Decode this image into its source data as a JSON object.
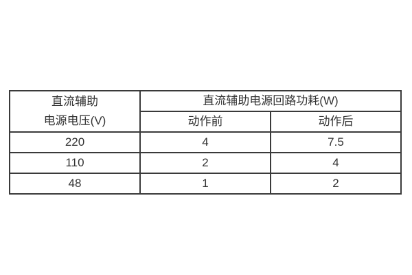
{
  "page": {
    "background_color": "#ffffff"
  },
  "colors": {
    "border": "#3a3a3a",
    "text": "#333333"
  },
  "table": {
    "header": {
      "voltage_line1": "直流辅助",
      "voltage_line2": "电源电压(V)",
      "power_group": "直流辅助电源回路功耗(W)",
      "before_action": "动作前",
      "after_action": "动作后"
    },
    "rows": [
      {
        "voltage": "220",
        "before": "4",
        "after": "7.5"
      },
      {
        "voltage": "110",
        "before": "2",
        "after": "4"
      },
      {
        "voltage": "48",
        "before": "1",
        "after": "2"
      }
    ]
  },
  "chart_data": {
    "type": "table",
    "title": "直流辅助电源回路功耗(W)",
    "categories": [
      "220",
      "110",
      "48"
    ],
    "series": [
      {
        "name": "动作前",
        "values": [
          4,
          2,
          1
        ]
      },
      {
        "name": "动作后",
        "values": [
          7.5,
          4,
          2
        ]
      }
    ]
  }
}
